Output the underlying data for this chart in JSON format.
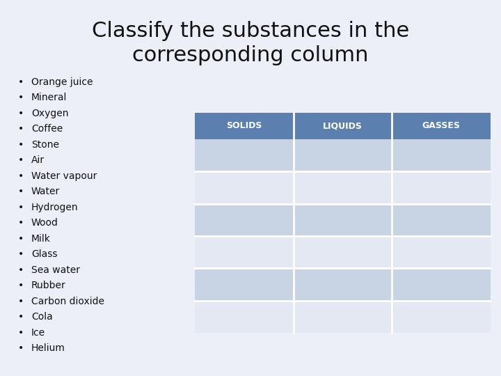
{
  "title_line1": "Classify the substances in the",
  "title_line2": "corresponding column",
  "background_color": "#eceef8",
  "items": [
    "Orange juice",
    "Mineral",
    "Oxygen",
    "Coffee",
    "Stone",
    "Air",
    "Water vapour",
    "Water",
    "Hydrogen",
    "Wood",
    "Milk",
    "Glass",
    "Sea water",
    "Rubber",
    "Carbon dioxide",
    "Cola",
    "Ice",
    "Helium"
  ],
  "col_headers": [
    "SOLIDS",
    "LIQUIDS",
    "GASSES"
  ],
  "header_bg": "#5b7fae",
  "header_text_color": "#ffffff",
  "row_colors": [
    "#c8d4e4",
    "#e4e8f2"
  ],
  "num_data_rows": 6,
  "title_fontsize": 22,
  "list_fontsize": 10,
  "header_fontsize": 9,
  "title_color": "#111111",
  "item_color": "#111111"
}
